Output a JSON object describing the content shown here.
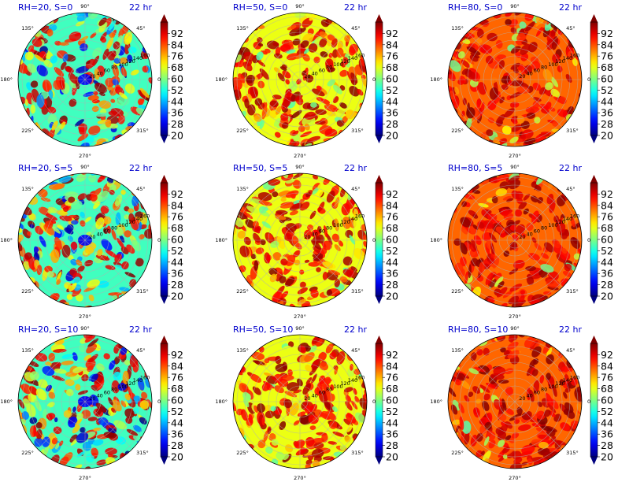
{
  "colors": {
    "title": "#0000cc",
    "colormap": [
      "#00007f",
      "#0000ff",
      "#007fff",
      "#00ffff",
      "#7fff7f",
      "#ffff00",
      "#ff7f00",
      "#ff0000",
      "#7f0000"
    ]
  },
  "chart_data": [
    {
      "type": "heatmap",
      "projection": "polar",
      "title_left": "RH=20, S=0",
      "title_right": "22 hr",
      "rh": 20,
      "s": 0,
      "hour": 22
    },
    {
      "type": "heatmap",
      "projection": "polar",
      "title_left": "RH=50, S=0",
      "title_right": "22 hr",
      "rh": 50,
      "s": 0,
      "hour": 22
    },
    {
      "type": "heatmap",
      "projection": "polar",
      "title_left": "RH=80, S=0",
      "title_right": "22 hr",
      "rh": 80,
      "s": 0,
      "hour": 22
    },
    {
      "type": "heatmap",
      "projection": "polar",
      "title_left": "RH=20, S=5",
      "title_right": "22 hr",
      "rh": 20,
      "s": 5,
      "hour": 22
    },
    {
      "type": "heatmap",
      "projection": "polar",
      "title_left": "RH=50, S=5",
      "title_right": "22 hr",
      "rh": 50,
      "s": 5,
      "hour": 22
    },
    {
      "type": "heatmap",
      "projection": "polar",
      "title_left": "RH=80, S=5",
      "title_right": "22 hr",
      "rh": 80,
      "s": 5,
      "hour": 22
    },
    {
      "type": "heatmap",
      "projection": "polar",
      "title_left": "RH=20, S=10",
      "title_right": "22 hr",
      "rh": 20,
      "s": 10,
      "hour": 22
    },
    {
      "type": "heatmap",
      "projection": "polar",
      "title_left": "RH=50, S=10",
      "title_right": "22 hr",
      "rh": 50,
      "s": 10,
      "hour": 22
    },
    {
      "type": "heatmap",
      "projection": "polar",
      "title_left": "RH=80, S=10",
      "title_right": "22 hr",
      "rh": 80,
      "s": 10,
      "hour": 22
    }
  ],
  "polar_axes": {
    "angle_labels": [
      "90°",
      "135°",
      "180°",
      "225°",
      "270°",
      "315°",
      "0°",
      "45°"
    ],
    "angles_deg": [
      90,
      135,
      180,
      225,
      270,
      315,
      0,
      45
    ],
    "radial_labels": [
      "20",
      "40",
      "60",
      "80",
      "100",
      "120",
      "140",
      "160"
    ],
    "radial_values": [
      20,
      40,
      60,
      80,
      100,
      120,
      140,
      160
    ],
    "rlim": [
      0,
      170
    ],
    "grid": true
  },
  "colorbar": {
    "ticks": [
      "20",
      "28",
      "36",
      "44",
      "52",
      "60",
      "68",
      "76",
      "84",
      "92"
    ],
    "tick_values": [
      20,
      28,
      36,
      44,
      52,
      60,
      68,
      76,
      84,
      92
    ],
    "range": [
      20,
      100
    ],
    "extend": "both"
  }
}
